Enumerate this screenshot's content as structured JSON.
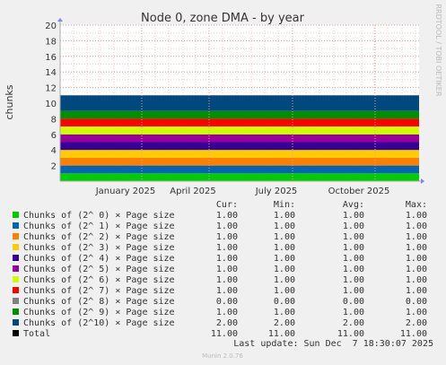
{
  "chart_data": {
    "type": "area",
    "title": "Node 0, zone DMA - by year",
    "ylabel": "chunks",
    "xlabel": "",
    "ylim": [
      0,
      20
    ],
    "yticks": [
      2,
      4,
      6,
      8,
      10,
      12,
      14,
      16,
      18,
      20
    ],
    "xtick_labels": [
      "January 2025",
      "April 2025",
      "July 2025",
      "October 2025"
    ],
    "grid": true,
    "stacked": true,
    "side_label": "RRDTOOL / TOBI OETIKER",
    "columns": [
      "Cur:",
      "Min:",
      "Avg:",
      "Max:"
    ],
    "series": [
      {
        "name": "Chunks of (2^ 0) × Page size",
        "color": "#00cc00",
        "cur": "1.00",
        "min": "1.00",
        "avg": "1.00",
        "max": "1.00",
        "value": 1
      },
      {
        "name": "Chunks of (2^ 1) × Page size",
        "color": "#0066b3",
        "cur": "1.00",
        "min": "1.00",
        "avg": "1.00",
        "max": "1.00",
        "value": 1
      },
      {
        "name": "Chunks of (2^ 2) × Page size",
        "color": "#ff8000",
        "cur": "1.00",
        "min": "1.00",
        "avg": "1.00",
        "max": "1.00",
        "value": 1
      },
      {
        "name": "Chunks of (2^ 3) × Page size",
        "color": "#ffcc00",
        "cur": "1.00",
        "min": "1.00",
        "avg": "1.00",
        "max": "1.00",
        "value": 1
      },
      {
        "name": "Chunks of (2^ 4) × Page size",
        "color": "#330099",
        "cur": "1.00",
        "min": "1.00",
        "avg": "1.00",
        "max": "1.00",
        "value": 1
      },
      {
        "name": "Chunks of (2^ 5) × Page size",
        "color": "#990099",
        "cur": "1.00",
        "min": "1.00",
        "avg": "1.00",
        "max": "1.00",
        "value": 1
      },
      {
        "name": "Chunks of (2^ 6) × Page size",
        "color": "#ccff00",
        "cur": "1.00",
        "min": "1.00",
        "avg": "1.00",
        "max": "1.00",
        "value": 1
      },
      {
        "name": "Chunks of (2^ 7) × Page size",
        "color": "#ff0000",
        "cur": "1.00",
        "min": "1.00",
        "avg": "1.00",
        "max": "1.00",
        "value": 1
      },
      {
        "name": "Chunks of (2^ 8) × Page size",
        "color": "#808080",
        "cur": "0.00",
        "min": "0.00",
        "avg": "0.00",
        "max": "0.00",
        "value": 0
      },
      {
        "name": "Chunks of (2^ 9) × Page size",
        "color": "#008f00",
        "cur": "1.00",
        "min": "1.00",
        "avg": "1.00",
        "max": "1.00",
        "value": 1
      },
      {
        "name": "Chunks of (2^10) × Page size",
        "color": "#00487d",
        "cur": "2.00",
        "min": "2.00",
        "avg": "2.00",
        "max": "2.00",
        "value": 2
      },
      {
        "name": "Total",
        "color": "#000000",
        "cur": "11.00",
        "min": "11.00",
        "avg": "11.00",
        "max": "11.00",
        "is_total": true
      }
    ],
    "last_update": "Last update: Sun Dec  7 18:30:07 2025",
    "footer": "Munin 2.0.76"
  }
}
